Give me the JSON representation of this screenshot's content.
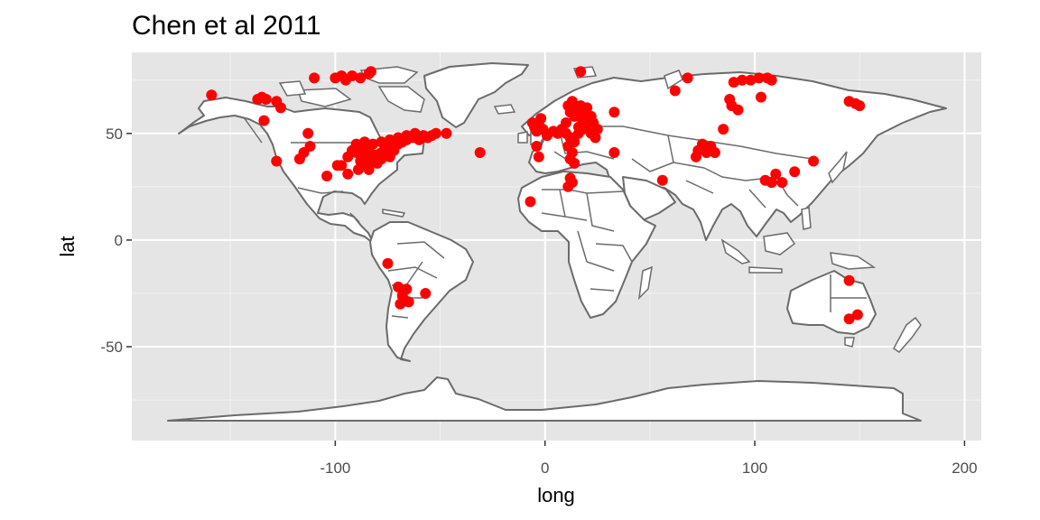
{
  "chart_data": {
    "type": "scatter",
    "title": "Chen et al 2011",
    "xlabel": "long",
    "ylabel": "lat",
    "xlim": [
      -197,
      208
    ],
    "ylim": [
      -94,
      88
    ],
    "x_ticks": [
      -100,
      0,
      100,
      200
    ],
    "x_tick_labels": [
      "-100",
      "0",
      "100",
      "200"
    ],
    "y_ticks": [
      -50,
      0,
      50
    ],
    "y_tick_labels": [
      "-50",
      "0",
      "50"
    ],
    "x_minor": [
      -150,
      -50,
      50,
      150
    ],
    "y_minor": [
      -75,
      -25,
      25,
      75
    ],
    "grid": true,
    "panel_color": "#e5e5e5",
    "point_color": "#ff0000",
    "land_color": "#ffffff",
    "outline_color": "#6b6b6b",
    "points": [
      [
        -159,
        68
      ],
      [
        -137,
        66
      ],
      [
        -135,
        67
      ],
      [
        -133,
        66
      ],
      [
        -128,
        65
      ],
      [
        -126,
        62
      ],
      [
        -134,
        56
      ],
      [
        -113,
        50
      ],
      [
        -112,
        44
      ],
      [
        -128,
        37
      ],
      [
        -117,
        38
      ],
      [
        -115,
        41
      ],
      [
        -110,
        76
      ],
      [
        -100,
        76
      ],
      [
        -97,
        77
      ],
      [
        -95,
        75
      ],
      [
        -92,
        77
      ],
      [
        -88,
        76
      ],
      [
        -84,
        78
      ],
      [
        -83,
        79
      ],
      [
        -99,
        35
      ],
      [
        -97,
        35
      ],
      [
        -94,
        39
      ],
      [
        -92,
        42
      ],
      [
        -90,
        41
      ],
      [
        -88,
        43
      ],
      [
        -86,
        40
      ],
      [
        -84,
        42
      ],
      [
        -82,
        39
      ],
      [
        -80,
        40
      ],
      [
        -78,
        41
      ],
      [
        -76,
        43
      ],
      [
        -74,
        42
      ],
      [
        -72,
        44
      ],
      [
        -70,
        45
      ],
      [
        -68,
        46
      ],
      [
        -66,
        47
      ],
      [
        -64,
        48
      ],
      [
        -62,
        48
      ],
      [
        -60,
        47
      ],
      [
        -58,
        49
      ],
      [
        -56,
        48
      ],
      [
        -54,
        49
      ],
      [
        -52,
        50
      ],
      [
        -88,
        37
      ],
      [
        -85,
        35
      ],
      [
        -83,
        37
      ],
      [
        -80,
        36
      ],
      [
        -78,
        38
      ],
      [
        -76,
        40
      ],
      [
        -74,
        39
      ],
      [
        -72,
        42
      ],
      [
        -90,
        45
      ],
      [
        -86,
        46
      ],
      [
        -82,
        45
      ],
      [
        -78,
        46
      ],
      [
        -74,
        47
      ],
      [
        -70,
        48
      ],
      [
        -66,
        49
      ],
      [
        -62,
        50
      ],
      [
        -104,
        30
      ],
      [
        -94,
        31
      ],
      [
        -89,
        33
      ],
      [
        -84,
        33
      ],
      [
        -47,
        50
      ],
      [
        -31,
        41
      ],
      [
        -7,
        18
      ],
      [
        -75,
        -11
      ],
      [
        -70,
        -22
      ],
      [
        -68,
        -26
      ],
      [
        -66,
        -23
      ],
      [
        -67,
        -28
      ],
      [
        -69,
        -30
      ],
      [
        -65,
        -29
      ],
      [
        -57,
        -25
      ],
      [
        -5,
        53
      ],
      [
        -3,
        55
      ],
      [
        -1,
        52
      ],
      [
        -4,
        51
      ],
      [
        -6,
        55
      ],
      [
        -2,
        57
      ],
      [
        -4,
        44
      ],
      [
        -3,
        39
      ],
      [
        1,
        49
      ],
      [
        4,
        51
      ],
      [
        6,
        50
      ],
      [
        8,
        52
      ],
      [
        10,
        55
      ],
      [
        12,
        60
      ],
      [
        14,
        58
      ],
      [
        16,
        60
      ],
      [
        11,
        63
      ],
      [
        13,
        65
      ],
      [
        15,
        62
      ],
      [
        17,
        63
      ],
      [
        19,
        60
      ],
      [
        21,
        57
      ],
      [
        23,
        55
      ],
      [
        25,
        52
      ],
      [
        10,
        50
      ],
      [
        12,
        48
      ],
      [
        14,
        46
      ],
      [
        16,
        50
      ],
      [
        18,
        52
      ],
      [
        20,
        54
      ],
      [
        22,
        50
      ],
      [
        24,
        48
      ],
      [
        11,
        44
      ],
      [
        13,
        41
      ],
      [
        12,
        38
      ],
      [
        14,
        36
      ],
      [
        16,
        53
      ],
      [
        18,
        56
      ],
      [
        20,
        62
      ],
      [
        22,
        58
      ],
      [
        17,
        79
      ],
      [
        33,
        60
      ],
      [
        33,
        41
      ],
      [
        11,
        25
      ],
      [
        13,
        27
      ],
      [
        12,
        29
      ],
      [
        56,
        28
      ],
      [
        62,
        70
      ],
      [
        68,
        76
      ],
      [
        73,
        42
      ],
      [
        75,
        45
      ],
      [
        77,
        41
      ],
      [
        72,
        39
      ],
      [
        79,
        44
      ],
      [
        81,
        41
      ],
      [
        85,
        52
      ],
      [
        89,
        63
      ],
      [
        92,
        61
      ],
      [
        88,
        66
      ],
      [
        90,
        74
      ],
      [
        94,
        75
      ],
      [
        98,
        75
      ],
      [
        102,
        76
      ],
      [
        106,
        76
      ],
      [
        108,
        75
      ],
      [
        103,
        67
      ],
      [
        105,
        28
      ],
      [
        108,
        27
      ],
      [
        110,
        31
      ],
      [
        113,
        27
      ],
      [
        119,
        32
      ],
      [
        128,
        37
      ],
      [
        145,
        65
      ],
      [
        148,
        64
      ],
      [
        150,
        63
      ],
      [
        145,
        -19
      ],
      [
        145,
        -37
      ],
      [
        149,
        -35
      ]
    ]
  }
}
